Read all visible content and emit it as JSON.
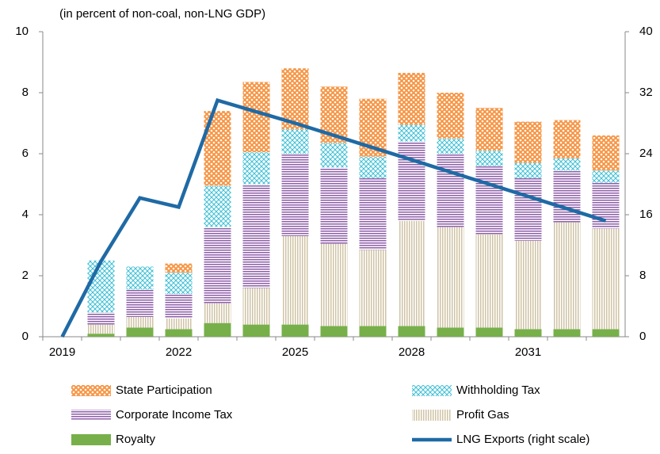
{
  "chart_data": {
    "type": "bar",
    "subtitle": "(in percent of non-coal, non-LNG GDP)",
    "categories": [
      "2019",
      null,
      null,
      "2022",
      null,
      null,
      "2025",
      null,
      null,
      "2028",
      null,
      null,
      "2031",
      null,
      null
    ],
    "stacked": true,
    "ylim": [
      0,
      10
    ],
    "yticks": [
      0,
      2,
      4,
      6,
      8,
      10
    ],
    "y2lim": [
      0,
      40
    ],
    "y2ticks": [
      0,
      8,
      16,
      24,
      32,
      40
    ],
    "series": [
      {
        "name": "Royalty",
        "color": "#77b04a",
        "values": [
          null,
          0.1,
          0.3,
          0.25,
          0.45,
          0.4,
          0.4,
          0.35,
          0.35,
          0.35,
          0.3,
          0.3,
          0.25,
          0.25,
          0.25
        ]
      },
      {
        "name": "Profit Gas",
        "color": "#cfc3a4",
        "values": [
          null,
          0.3,
          0.35,
          0.35,
          0.65,
          1.2,
          2.9,
          2.7,
          2.5,
          3.45,
          3.3,
          3.05,
          2.9,
          3.5,
          3.3
        ]
      },
      {
        "name": "Corporate Income Tax",
        "color": "#8d5ea8",
        "values": [
          null,
          0.4,
          0.9,
          0.8,
          2.5,
          3.4,
          2.7,
          2.5,
          2.35,
          2.6,
          2.4,
          2.25,
          2.05,
          1.7,
          1.5
        ]
      },
      {
        "name": "Withholding Tax",
        "color": "#3cbfd6",
        "values": [
          null,
          1.7,
          0.75,
          0.7,
          1.35,
          1.05,
          0.8,
          0.8,
          0.7,
          0.55,
          0.5,
          0.5,
          0.5,
          0.4,
          0.4
        ]
      },
      {
        "name": "State Participation",
        "color": "#f79646",
        "values": [
          null,
          0,
          0,
          0.3,
          2.45,
          2.3,
          2.0,
          1.85,
          1.9,
          1.7,
          1.5,
          1.4,
          1.35,
          1.25,
          1.15
        ]
      },
      {
        "name": "LNG Exports (right scale)",
        "color": "#1f6aa5",
        "type": "line",
        "axis": "y2",
        "values": [
          0,
          9.9,
          18.2,
          17,
          31,
          29.5,
          28,
          26.4,
          24.8,
          23.2,
          21.6,
          20,
          18.4,
          16.8,
          15.2
        ]
      }
    ]
  }
}
